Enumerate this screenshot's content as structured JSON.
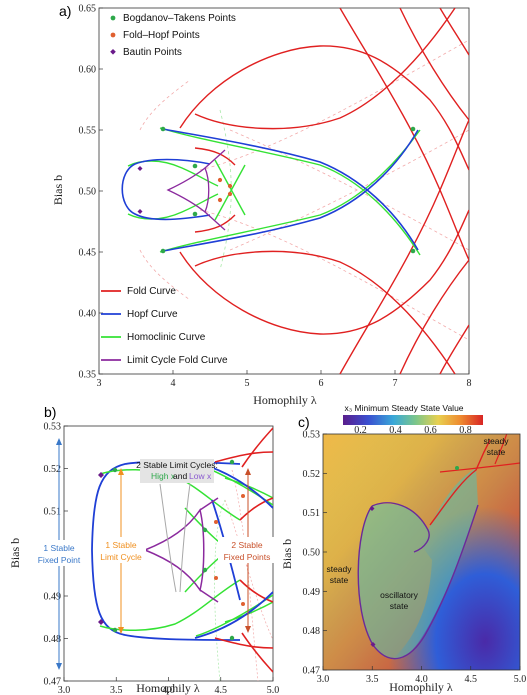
{
  "panels": {
    "a": {
      "letter": "a)",
      "xlabel": "Homophily λ",
      "ylabel": "Bias b",
      "xticks": [
        "3",
        "4",
        "5",
        "6",
        "7",
        "8"
      ],
      "yticks": [
        "0.35",
        "0.40",
        "0.45",
        "0.50",
        "0.55",
        "0.60",
        "0.65"
      ],
      "point_legend": [
        "Bogdanov–Takens Points",
        "Fold–Hopf Points",
        "Bautin Points"
      ],
      "curve_legend": [
        "Fold Curve",
        "Hopf Curve",
        "Homoclinic Curve",
        "Limit Cycle Fold Curve"
      ]
    },
    "b": {
      "letter": "b)",
      "xlabel": "Homophily λ",
      "ylabel": "Bias b",
      "xticks": [
        "3.0",
        "3.5",
        "4.0",
        "4.5",
        "5.0"
      ],
      "yticks": [
        "0.47",
        "0.48",
        "0.49",
        "0.50",
        "0.51",
        "0.52",
        "0.53"
      ],
      "ann_stable_fixed": [
        "1 Stable",
        "Fixed Point"
      ],
      "ann_stable_cycle": [
        "1 Stable",
        "Limit Cycle"
      ],
      "ann_two_cycles_title": "2 Stable Limit Cycles:",
      "ann_two_cycles_high": "High x",
      "ann_two_cycles_and": "and",
      "ann_two_cycles_low": "Low x",
      "ann_two_fixed": [
        "2 Stable",
        "Fixed Points"
      ]
    },
    "c": {
      "letter": "c)",
      "xlabel": "Homophily λ",
      "ylabel": "Bias b",
      "colorbar_title": "x₃ Minimum Steady State Value",
      "colorbar_ticks": [
        "0.2",
        "0.4",
        "0.6",
        "0.8"
      ],
      "xticks": [
        "3.0",
        "3.5",
        "4.0",
        "4.5",
        "5.0"
      ],
      "yticks": [
        "0.47",
        "0.48",
        "0.49",
        "0.50",
        "0.51",
        "0.52",
        "0.53"
      ],
      "region_steady_left": [
        "steady",
        "state"
      ],
      "region_oscillatory": [
        "oscillatory",
        "state"
      ],
      "region_steady_top": [
        "steady",
        "state"
      ]
    }
  },
  "colors": {
    "fold": "#e02020",
    "hopf": "#1f3fd6",
    "homoclinic": "#34e234",
    "lcfold": "#8b2a9e",
    "bt_point": "#2ea84a",
    "fh_point": "#e06030",
    "bautin_point": "#6a1a8a",
    "ann_blue": "#3a78c8",
    "ann_orange": "#f09020",
    "ann_red": "#c8502a"
  },
  "chart_data": [
    {
      "type": "line",
      "panel": "a",
      "xlabel": "Homophily λ",
      "ylabel": "Bias b",
      "xlim": [
        3,
        8
      ],
      "ylim": [
        0.35,
        0.65
      ],
      "series": [
        {
          "name": "Hopf Curve",
          "x": [
            3.8,
            3.6,
            3.45,
            3.5,
            3.75,
            4.2,
            5.0,
            6.0,
            7.0,
            7.3
          ],
          "y": [
            0.48,
            0.485,
            0.5,
            0.515,
            0.523,
            0.522,
            0.516,
            0.5,
            0.465,
            0.453
          ]
        },
        {
          "name": "Hopf Curve",
          "x": [
            3.8,
            3.6,
            3.45,
            3.5,
            3.75,
            4.2,
            5.0,
            6.0,
            7.0,
            7.3
          ],
          "y": [
            0.52,
            0.515,
            0.5,
            0.485,
            0.477,
            0.478,
            0.484,
            0.5,
            0.535,
            0.547
          ]
        },
        {
          "name": "Fold Curve",
          "x": [
            3.8,
            4.3,
            5.0,
            5.5,
            6.0,
            6.6,
            7.2,
            7.5
          ],
          "y": [
            0.55,
            0.598,
            0.615,
            0.618,
            0.608,
            0.585,
            0.548,
            0.52
          ]
        },
        {
          "name": "Fold Curve",
          "x": [
            3.8,
            4.3,
            5.0,
            5.5,
            6.0,
            6.6,
            7.2,
            7.5
          ],
          "y": [
            0.45,
            0.402,
            0.385,
            0.382,
            0.392,
            0.415,
            0.452,
            0.48
          ]
        },
        {
          "name": "Homoclinic Curve",
          "x": [
            3.5,
            3.75,
            4.2,
            5.0,
            6.0,
            7.0,
            7.3
          ],
          "y": [
            0.518,
            0.522,
            0.52,
            0.513,
            0.497,
            0.46,
            0.45
          ]
        },
        {
          "name": "Limit Cycle Fold Curve",
          "x": [
            4.0,
            4.2,
            4.4,
            4.2,
            4.0
          ],
          "y": [
            0.5,
            0.507,
            0.498,
            0.493,
            0.5
          ]
        }
      ],
      "points": [
        {
          "name": "Bogdanov–Takens Points",
          "x": [
            3.8,
            3.8,
            7.3,
            7.3,
            4.0,
            4.0
          ],
          "y": [
            0.55,
            0.45,
            0.549,
            0.45,
            0.509,
            0.491
          ]
        },
        {
          "name": "Fold–Hopf Points",
          "x": [
            4.4,
            4.4
          ],
          "y": [
            0.52,
            0.48
          ]
        },
        {
          "name": "Bautin Points",
          "x": [
            3.55,
            3.55
          ],
          "y": [
            0.518,
            0.482
          ]
        }
      ]
    },
    {
      "type": "line",
      "panel": "b",
      "xlabel": "Homophily λ",
      "ylabel": "Bias b",
      "xlim": [
        3.0,
        5.0
      ],
      "ylim": [
        0.47,
        0.53
      ],
      "series": [
        {
          "name": "Hopf Curve",
          "x": [
            3.7,
            3.55,
            3.45,
            3.42,
            3.45,
            3.55,
            3.7,
            4.0,
            4.3,
            4.6
          ],
          "y": [
            0.5205,
            0.518,
            0.51,
            0.5,
            0.49,
            0.482,
            0.4795,
            0.4805,
            0.483,
            0.486
          ]
        },
        {
          "name": "Hopf Curve",
          "x": [
            3.7,
            4.0,
            4.3,
            4.6
          ],
          "y": [
            0.5205,
            0.5195,
            0.517,
            0.514
          ]
        }
      ]
    },
    {
      "type": "heatmap",
      "panel": "c",
      "title": "x₃ Minimum Steady State Value",
      "xlabel": "Homophily λ",
      "ylabel": "Bias b",
      "xlim": [
        3.0,
        5.0
      ],
      "ylim": [
        0.47,
        0.53
      ],
      "colorbar_range": [
        0.1,
        0.9
      ],
      "colorbar_ticks": [
        0.2,
        0.4,
        0.6,
        0.8
      ]
    }
  ]
}
